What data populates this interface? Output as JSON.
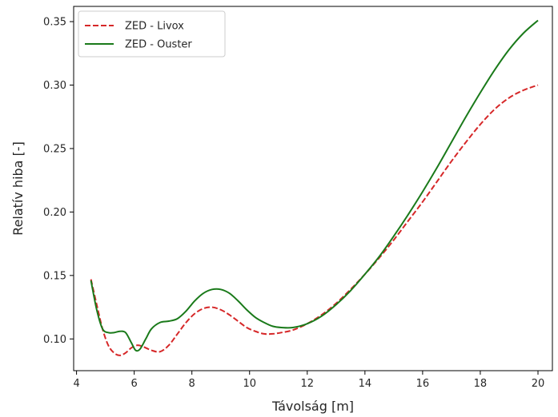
{
  "chart_data": {
    "type": "line",
    "title": "",
    "xlabel": "Távolság [m]",
    "ylabel": "Relatív hiba [-]",
    "xlim": [
      3.9,
      20.5
    ],
    "ylim": [
      0.075,
      0.362
    ],
    "xticks": [
      4,
      6,
      8,
      10,
      12,
      14,
      16,
      18,
      20
    ],
    "xtick_labels": [
      "4",
      "6",
      "8",
      "10",
      "12",
      "14",
      "16",
      "18",
      "20"
    ],
    "yticks": [
      0.1,
      0.15,
      0.2,
      0.25,
      0.3,
      0.35
    ],
    "ytick_labels": [
      "0.10",
      "0.15",
      "0.20",
      "0.25",
      "0.30",
      "0.35"
    ],
    "grid": false,
    "legend_position": "top-left",
    "series": [
      {
        "name": "ZED - Livox",
        "color": "#d62728",
        "style": "dashed",
        "x": [
          4.5,
          4.7,
          4.9,
          5.1,
          5.3,
          5.5,
          5.7,
          5.9,
          6.1,
          6.3,
          6.6,
          6.9,
          7.2,
          7.5,
          7.8,
          8.1,
          8.4,
          8.7,
          9.0,
          9.3,
          9.6,
          9.9,
          10.2,
          10.5,
          10.8,
          11.1,
          11.5,
          12.0,
          12.5,
          13.0,
          13.5,
          14.0,
          14.5,
          15.0,
          15.5,
          16.0,
          16.5,
          17.0,
          17.5,
          18.0,
          18.5,
          19.0,
          19.5,
          20.0
        ],
        "y": [
          0.147,
          0.127,
          0.108,
          0.095,
          0.089,
          0.087,
          0.089,
          0.093,
          0.095,
          0.094,
          0.091,
          0.09,
          0.095,
          0.104,
          0.113,
          0.12,
          0.124,
          0.125,
          0.123,
          0.119,
          0.114,
          0.109,
          0.106,
          0.104,
          0.104,
          0.105,
          0.107,
          0.112,
          0.119,
          0.128,
          0.139,
          0.151,
          0.164,
          0.178,
          0.193,
          0.208,
          0.224,
          0.24,
          0.255,
          0.269,
          0.281,
          0.29,
          0.296,
          0.3
        ]
      },
      {
        "name": "ZED - Ouster",
        "color": "#1a7a1a",
        "style": "solid",
        "x": [
          4.5,
          4.7,
          4.9,
          5.1,
          5.3,
          5.5,
          5.7,
          5.9,
          6.05,
          6.2,
          6.4,
          6.6,
          6.9,
          7.2,
          7.5,
          7.8,
          8.1,
          8.4,
          8.7,
          9.0,
          9.3,
          9.6,
          9.9,
          10.2,
          10.5,
          10.8,
          11.1,
          11.5,
          12.0,
          12.5,
          13.0,
          13.5,
          14.0,
          14.5,
          15.0,
          15.5,
          16.0,
          16.5,
          17.0,
          17.5,
          18.0,
          18.5,
          19.0,
          19.5,
          20.0
        ],
        "y": [
          0.146,
          0.123,
          0.108,
          0.105,
          0.105,
          0.106,
          0.105,
          0.097,
          0.091,
          0.092,
          0.1,
          0.108,
          0.113,
          0.114,
          0.116,
          0.122,
          0.13,
          0.136,
          0.139,
          0.139,
          0.136,
          0.13,
          0.123,
          0.117,
          0.113,
          0.11,
          0.109,
          0.109,
          0.112,
          0.118,
          0.127,
          0.138,
          0.151,
          0.165,
          0.181,
          0.198,
          0.216,
          0.235,
          0.255,
          0.275,
          0.294,
          0.312,
          0.328,
          0.341,
          0.351
        ]
      }
    ]
  }
}
